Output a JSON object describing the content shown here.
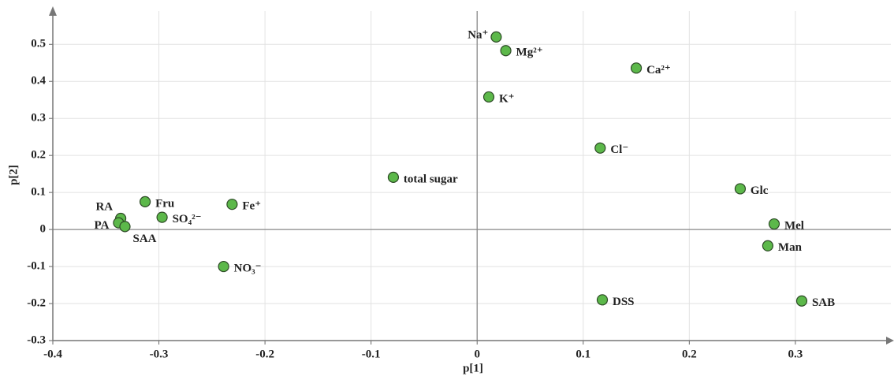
{
  "chart_data": {
    "type": "scatter",
    "x_label": "p[1]",
    "y_label": "p[2]",
    "labels": [
      "Na⁺",
      "Mg²⁺",
      "Ca²⁺",
      "K⁺",
      "Cl⁻",
      "total sugar",
      "Glc",
      "Mel",
      "Man",
      "DSS",
      "SAB",
      "Fe⁺",
      "Fru",
      "SO₄²⁻",
      "RA",
      "PA",
      "SAA",
      "NO₃⁻"
    ],
    "x": [
      0.018,
      0.027,
      0.15,
      0.011,
      0.116,
      -0.079,
      0.248,
      0.28,
      0.274,
      0.118,
      0.306,
      -0.231,
      -0.313,
      -0.297,
      -0.336,
      -0.338,
      -0.332,
      -0.239
    ],
    "values": [
      0.52,
      0.483,
      0.436,
      0.358,
      0.22,
      0.141,
      0.11,
      0.015,
      -0.044,
      -0.19,
      -0.193,
      0.068,
      0.075,
      0.033,
      0.03,
      0.018,
      0.008,
      -0.1
    ],
    "color": "#5cb84a",
    "xlim": [
      -0.4,
      0.39
    ],
    "ylim": [
      -0.3,
      0.59
    ],
    "xticks": [
      -0.4,
      -0.3,
      -0.2,
      -0.1,
      0,
      0.1,
      0.2,
      0.3
    ],
    "yticks": [
      -0.3,
      -0.2,
      -0.1,
      0,
      0.1,
      0.2,
      0.3,
      0.4,
      0.5
    ],
    "grid": true
  }
}
